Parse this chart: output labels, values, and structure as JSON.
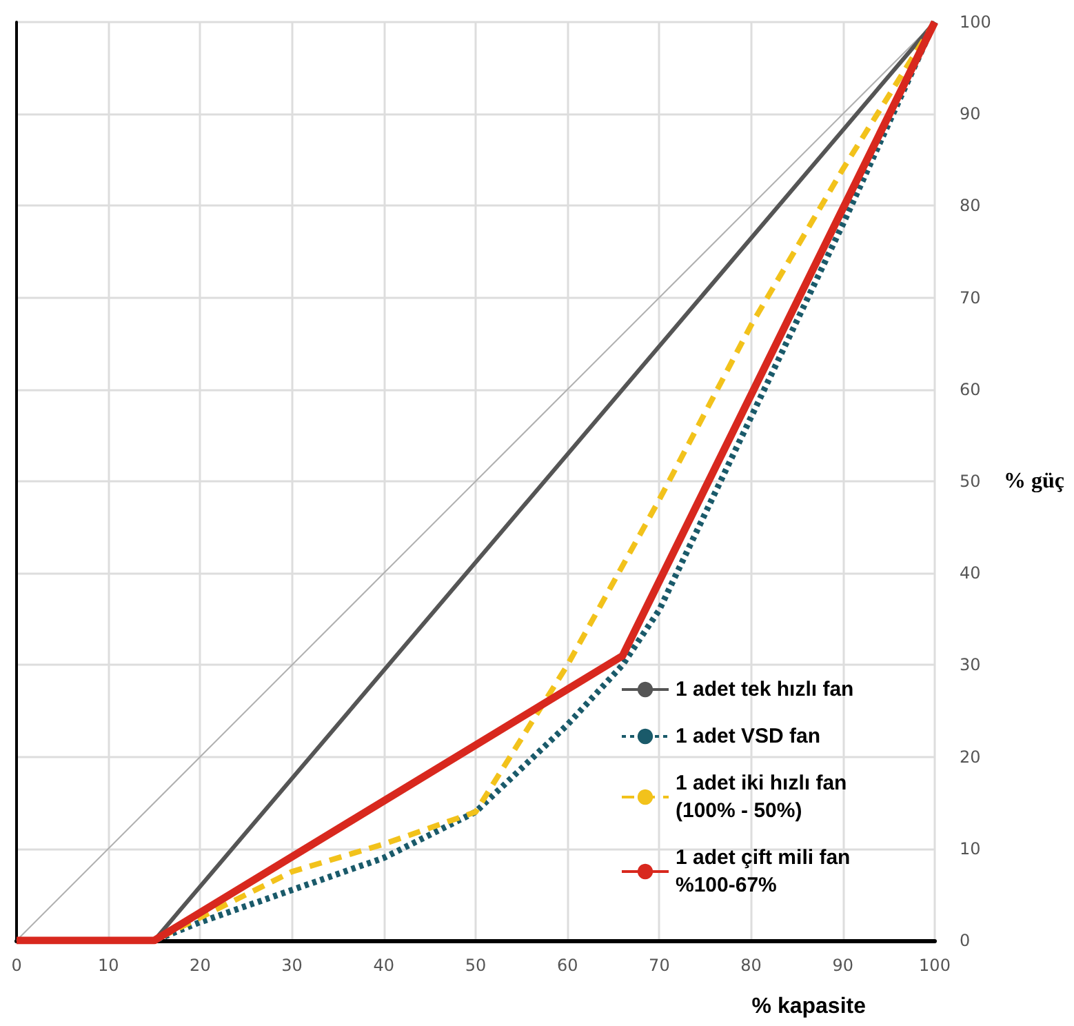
{
  "chart_data": {
    "type": "line",
    "xlabel": "% kapasite",
    "ylabel": "% güç",
    "xlim": [
      0,
      100
    ],
    "ylim": [
      0,
      100
    ],
    "xticks": [
      0,
      10,
      20,
      30,
      40,
      50,
      60,
      70,
      80,
      90,
      100
    ],
    "yticks": [
      0,
      10,
      20,
      30,
      40,
      50,
      60,
      70,
      80,
      90,
      100
    ],
    "grid": true,
    "legend": "bottom right",
    "marker": "none",
    "series": [
      {
        "color": "#b0b0b0",
        "line_style": "solid",
        "x": [
          0,
          100
        ],
        "values": [
          0,
          100
        ]
      },
      {
        "name": "1 adet tek hızlı fan",
        "color": "#555555",
        "line_style": "solid",
        "x": [
          0,
          15,
          100
        ],
        "values": [
          0,
          0,
          100
        ]
      },
      {
        "name": "1 adet VSD fan",
        "color": "#1a5a6a",
        "line_style": "dotted",
        "x": [
          0,
          15,
          20,
          30,
          40,
          50,
          60,
          66,
          70,
          80,
          90,
          100
        ],
        "values": [
          0,
          0,
          2,
          5.5,
          9,
          14,
          23.5,
          30,
          36,
          57,
          78,
          100
        ]
      },
      {
        "name": "1 adet iki hızlı fan (100% - 50%)",
        "color": "#f2c21b",
        "line_style": "dashed",
        "x": [
          0,
          15,
          30,
          40,
          50,
          60,
          70,
          80,
          90,
          100
        ],
        "values": [
          0,
          0,
          7.5,
          10.5,
          14,
          30,
          48,
          67,
          84,
          100
        ]
      },
      {
        "name": "1 adet çift mili fan %100-67%",
        "color": "#d8281e",
        "line_style": "solid",
        "x": [
          0,
          15,
          66,
          100
        ],
        "values": [
          0,
          0,
          31,
          100
        ]
      }
    ]
  }
}
